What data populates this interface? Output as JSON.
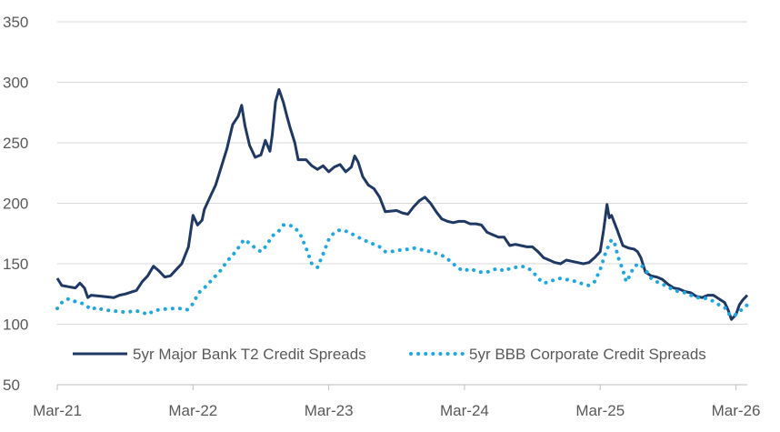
{
  "chart_data": {
    "type": "line",
    "title": "",
    "xlabel": "",
    "ylabel": "",
    "ylim": [
      50,
      350
    ],
    "yticks": [
      50,
      100,
      150,
      200,
      250,
      300,
      350
    ],
    "xlim": [
      0,
      61
    ],
    "xticks": [
      {
        "x": 0,
        "label": "Mar-21"
      },
      {
        "x": 12,
        "label": "Mar-22"
      },
      {
        "x": 24,
        "label": "Mar-23"
      },
      {
        "x": 36,
        "label": "Mar-24"
      },
      {
        "x": 48,
        "label": "Mar-25"
      },
      {
        "x": 60,
        "label": "Mar-26"
      }
    ],
    "x_unit": "months since Mar-21",
    "grid": "horizontal",
    "legend_position": "bottom",
    "series": [
      {
        "name": "5yr Major Bank T2 Credit Spreads",
        "color": "#1f3864",
        "style": "solid",
        "points": [
          [
            0,
            138
          ],
          [
            0.4,
            132
          ],
          [
            1,
            131
          ],
          [
            1.6,
            130
          ],
          [
            2,
            134
          ],
          [
            2.4,
            130
          ],
          [
            2.7,
            122
          ],
          [
            3,
            124
          ],
          [
            4,
            123
          ],
          [
            5,
            122
          ],
          [
            5.5,
            124
          ],
          [
            6,
            125
          ],
          [
            7,
            128
          ],
          [
            7.5,
            135
          ],
          [
            8,
            140
          ],
          [
            8.5,
            148
          ],
          [
            9,
            144
          ],
          [
            9.5,
            139
          ],
          [
            10,
            140
          ],
          [
            10.6,
            146
          ],
          [
            11,
            150
          ],
          [
            11.6,
            164
          ],
          [
            12,
            190
          ],
          [
            12.4,
            182
          ],
          [
            12.8,
            186
          ],
          [
            13,
            195
          ],
          [
            13.5,
            205
          ],
          [
            14,
            215
          ],
          [
            14.5,
            230
          ],
          [
            15,
            245
          ],
          [
            15.5,
            265
          ],
          [
            16,
            272
          ],
          [
            16.3,
            281
          ],
          [
            16.6,
            264
          ],
          [
            17,
            248
          ],
          [
            17.5,
            238
          ],
          [
            18,
            240
          ],
          [
            18.4,
            252
          ],
          [
            18.8,
            243
          ],
          [
            19,
            256
          ],
          [
            19.3,
            284
          ],
          [
            19.6,
            294
          ],
          [
            20,
            283
          ],
          [
            20.3,
            272
          ],
          [
            20.6,
            262
          ],
          [
            21,
            250
          ],
          [
            21.3,
            236
          ],
          [
            22,
            236
          ],
          [
            22.5,
            231
          ],
          [
            23,
            228
          ],
          [
            23.5,
            231
          ],
          [
            24,
            226
          ],
          [
            24.5,
            230
          ],
          [
            25,
            232
          ],
          [
            25.5,
            226
          ],
          [
            26,
            230
          ],
          [
            26.3,
            239
          ],
          [
            26.6,
            234
          ],
          [
            27,
            222
          ],
          [
            27.5,
            215
          ],
          [
            28,
            212
          ],
          [
            28.5,
            205
          ],
          [
            29,
            193
          ],
          [
            30,
            194
          ],
          [
            30.5,
            192
          ],
          [
            31,
            191
          ],
          [
            31.5,
            197
          ],
          [
            32,
            202
          ],
          [
            32.5,
            205
          ],
          [
            33,
            200
          ],
          [
            33.5,
            193
          ],
          [
            34,
            187
          ],
          [
            34.5,
            185
          ],
          [
            35,
            184
          ],
          [
            35.5,
            185
          ],
          [
            36,
            185
          ],
          [
            36.5,
            183
          ],
          [
            37,
            183
          ],
          [
            37.5,
            182
          ],
          [
            38,
            176
          ],
          [
            38.5,
            174
          ],
          [
            39,
            172
          ],
          [
            39.5,
            172
          ],
          [
            40,
            165
          ],
          [
            40.5,
            166
          ],
          [
            41,
            165
          ],
          [
            41.5,
            164
          ],
          [
            42,
            164
          ],
          [
            42.5,
            160
          ],
          [
            43,
            155
          ],
          [
            43.5,
            153
          ],
          [
            44,
            151
          ],
          [
            44.5,
            150
          ],
          [
            45,
            153
          ],
          [
            45.5,
            152
          ],
          [
            46,
            151
          ],
          [
            46.5,
            150
          ],
          [
            47,
            151
          ],
          [
            47.5,
            155
          ],
          [
            48,
            160
          ],
          [
            48.3,
            178
          ],
          [
            48.6,
            199
          ],
          [
            48.8,
            188
          ],
          [
            49,
            190
          ],
          [
            49.5,
            178
          ],
          [
            50,
            165
          ],
          [
            50.5,
            163
          ],
          [
            51,
            162
          ],
          [
            51.3,
            160
          ],
          [
            51.6,
            155
          ],
          [
            52,
            143
          ],
          [
            52.5,
            140
          ],
          [
            53,
            139
          ],
          [
            53.5,
            137
          ],
          [
            54,
            133
          ],
          [
            54.5,
            130
          ],
          [
            55,
            129
          ],
          [
            55.5,
            127
          ],
          [
            56,
            126
          ],
          [
            56.5,
            123
          ],
          [
            57,
            122
          ],
          [
            57.5,
            124
          ],
          [
            58,
            124
          ],
          [
            58.5,
            121
          ],
          [
            59,
            118
          ],
          [
            59.3,
            112
          ],
          [
            59.6,
            104
          ],
          [
            60,
            108
          ],
          [
            60.3,
            116
          ],
          [
            60.6,
            120
          ],
          [
            61,
            124
          ]
        ]
      },
      {
        "name": "5yr BBB Corporate Credit Spreads",
        "color": "#1ea7e1",
        "style": "dotted",
        "points": [
          [
            0,
            113
          ],
          [
            0.5,
            119
          ],
          [
            1,
            121
          ],
          [
            1.5,
            119
          ],
          [
            2,
            118
          ],
          [
            2.5,
            116
          ],
          [
            3,
            112
          ],
          [
            3.5,
            114
          ],
          [
            4,
            112
          ],
          [
            5,
            111
          ],
          [
            6,
            110
          ],
          [
            7,
            111
          ],
          [
            7.5,
            110
          ],
          [
            8,
            108
          ],
          [
            8.5,
            111
          ],
          [
            9,
            112
          ],
          [
            10,
            113
          ],
          [
            11,
            113
          ],
          [
            11.5,
            112
          ],
          [
            12,
            117
          ],
          [
            12.5,
            126
          ],
          [
            13,
            130
          ],
          [
            13.5,
            135
          ],
          [
            14,
            140
          ],
          [
            14.5,
            145
          ],
          [
            15,
            152
          ],
          [
            15.5,
            157
          ],
          [
            16,
            163
          ],
          [
            16.5,
            170
          ],
          [
            17,
            167
          ],
          [
            17.5,
            163
          ],
          [
            18,
            160
          ],
          [
            18.5,
            165
          ],
          [
            19,
            173
          ],
          [
            19.5,
            176
          ],
          [
            20,
            182
          ],
          [
            20.5,
            182
          ],
          [
            21,
            180
          ],
          [
            21.5,
            174
          ],
          [
            22,
            163
          ],
          [
            22.5,
            150
          ],
          [
            23,
            147
          ],
          [
            23.5,
            158
          ],
          [
            24,
            170
          ],
          [
            24.5,
            176
          ],
          [
            25,
            178
          ],
          [
            25.5,
            177
          ],
          [
            26,
            175
          ],
          [
            27,
            170
          ],
          [
            28,
            166
          ],
          [
            28.5,
            164
          ],
          [
            29,
            160
          ],
          [
            29.5,
            160
          ],
          [
            30,
            161
          ],
          [
            31,
            162
          ],
          [
            31.5,
            163
          ],
          [
            32,
            162
          ],
          [
            32.5,
            161
          ],
          [
            33,
            160
          ],
          [
            34,
            157
          ],
          [
            34.5,
            154
          ],
          [
            35,
            150
          ],
          [
            35.5,
            146
          ],
          [
            36,
            144
          ],
          [
            36.5,
            146
          ],
          [
            37,
            144
          ],
          [
            37.5,
            143
          ],
          [
            38,
            143
          ],
          [
            38.5,
            145
          ],
          [
            39,
            146
          ],
          [
            39.5,
            144
          ],
          [
            40,
            146
          ],
          [
            40.5,
            147
          ],
          [
            41,
            148
          ],
          [
            41.5,
            147
          ],
          [
            42,
            144
          ],
          [
            42.5,
            138
          ],
          [
            43,
            134
          ],
          [
            43.5,
            135
          ],
          [
            44,
            137
          ],
          [
            44.5,
            138
          ],
          [
            45,
            137
          ],
          [
            45.5,
            136
          ],
          [
            46,
            135
          ],
          [
            46.5,
            133
          ],
          [
            47,
            132
          ],
          [
            47.5,
            135
          ],
          [
            48,
            145
          ],
          [
            48.5,
            160
          ],
          [
            49,
            170
          ],
          [
            49.3,
            166
          ],
          [
            49.6,
            155
          ],
          [
            50,
            145
          ],
          [
            50.3,
            135
          ],
          [
            50.6,
            140
          ],
          [
            51,
            148
          ],
          [
            51.5,
            150
          ],
          [
            52,
            145
          ],
          [
            52.5,
            138
          ],
          [
            53,
            135
          ],
          [
            53.5,
            133
          ],
          [
            54,
            131
          ],
          [
            54.5,
            128
          ],
          [
            55,
            127
          ],
          [
            55.5,
            126
          ],
          [
            56,
            124
          ],
          [
            56.5,
            122
          ],
          [
            57,
            122
          ],
          [
            57.5,
            121
          ],
          [
            58,
            119
          ],
          [
            58.5,
            116
          ],
          [
            59,
            114
          ],
          [
            59.5,
            107
          ],
          [
            60,
            108
          ],
          [
            60.5,
            112
          ],
          [
            61,
            116
          ]
        ]
      }
    ]
  }
}
